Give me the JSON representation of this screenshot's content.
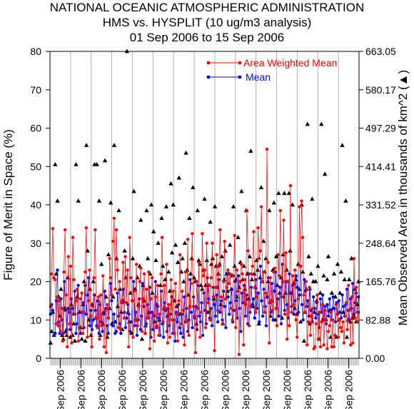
{
  "title_lines": [
    "NATIONAL OCEANIC ATMOSPHERIC ADMINISTRATION",
    "HMS vs. HYSPLIT (10 ug/m3 analysis)",
    "01 Sep 2006 to 15 Sep 2006"
  ],
  "chart_data": {
    "type": "line",
    "title": "NATIONAL OCEANIC ATMOSPHERIC ADMINISTRATION\nHMS vs. HYSPLIT (10 ug/m3 analysis)\n01 Sep 2006 to 15 Sep 2006",
    "ylabel": "Figure of Merit in Space (%)",
    "y2label": "Mean Observed Area in thousands of km^2 (▲)",
    "ylim": [
      0,
      80
    ],
    "y2lim": [
      0,
      663.05
    ],
    "y_ticks": [
      0,
      10,
      20,
      30,
      40,
      50,
      60,
      70,
      80
    ],
    "y2_ticks": [
      "0.00",
      "82.88",
      "165.76",
      "248.64",
      "331.52",
      "414.41",
      "497.29",
      "580.17",
      "663.05"
    ],
    "x_tick_labels": [
      "Sep 2006",
      "Sep 2006",
      "Sep 2006",
      "Sep 2006",
      "Sep 2006",
      "Sep 2006",
      "Sep 2006",
      "Sep 2006",
      "Sep 2006",
      "Sep 2006",
      "Sep 2006",
      "Sep 2006",
      "Sep 2006",
      "Sep 2006",
      "Sep 2006"
    ],
    "x_tick_positions_days": [
      1,
      2,
      3,
      4,
      5,
      6,
      7,
      8,
      9,
      10,
      11,
      12,
      13,
      14,
      15
    ],
    "legend_position": "top-right",
    "grid": "vertical lines at day boundaries",
    "series": [
      {
        "name": "Area Weighted Mean",
        "color": "#ff0000",
        "marker": "circle",
        "values": [
          13.5,
          22.0,
          33.8,
          21.0,
          20.5,
          9.0,
          16.0,
          8.5,
          15.0,
          7.0,
          13.0,
          4.5,
          22.5,
          33.5,
          16.5,
          3.0,
          26.5,
          9.0,
          24.0,
          4.0,
          31.5,
          20.5,
          11.5,
          15.0,
          18.0,
          4.5,
          8.0,
          15.5,
          17.0,
          6.5,
          12.0,
          22.5,
          34.0,
          5.5,
          15.0,
          23.0,
          11.0,
          3.0,
          13.5,
          21.0,
          33.5,
          10.5,
          8.0,
          16.0,
          5.0,
          16.5,
          8.5,
          21.5,
          3.0,
          12.5,
          1.5,
          14.0,
          10.5,
          26.0,
          21.0,
          16.5,
          30.5,
          36.5,
          18.0,
          33.5,
          23.0,
          8.0,
          20.0,
          7.5,
          15.0,
          25.0,
          10.5,
          26.5,
          14.5,
          23.0,
          3.0,
          31.5,
          21.0,
          15.0,
          5.5,
          17.5,
          10.0,
          24.5,
          8.5,
          13.5,
          20.0,
          23.5,
          7.0,
          15.5,
          22.0,
          6.5,
          18.0,
          10.5,
          22.5,
          2.5,
          15.5,
          21.0,
          11.5,
          4.5,
          16.0,
          8.5,
          19.0,
          6.0,
          11.5,
          22.0,
          31.5,
          9.5,
          19.0,
          13.0,
          24.5,
          4.0,
          14.0,
          5.5,
          20.5,
          10.0,
          17.5,
          6.5,
          19.5,
          11.5,
          4.5,
          15.0,
          27.0,
          9.0,
          17.5,
          12.5,
          3.5,
          22.5,
          9.5,
          31.0,
          6.0,
          13.5,
          19.5,
          32.5,
          13.5,
          11.0,
          1.5,
          20.0,
          13.0,
          25.0,
          5.5,
          12.0,
          32.5,
          21.5,
          23.0,
          8.0,
          30.0,
          14.5,
          19.0,
          10.0,
          21.0,
          30.0,
          16.0,
          2.0,
          18.5,
          27.0,
          12.5,
          24.0,
          33.5,
          16.0,
          9.0,
          20.0,
          30.5,
          15.5,
          18.5,
          23.0,
          19.5,
          22.0,
          13.0,
          10.0,
          21.5,
          32.0,
          8.0,
          23.0,
          17.5,
          1.0,
          20.0,
          24.5,
          22.0,
          3.5,
          20.5,
          14.0,
          38.5,
          28.0,
          8.5,
          13.5,
          22.0,
          24.0,
          33.0,
          18.5,
          12.0,
          16.0,
          34.0,
          26.0,
          28.0,
          39.5,
          20.0,
          22.5,
          12.0,
          17.0,
          54.5,
          25.0,
          4.0,
          21.0,
          15.0,
          12.5,
          22.5,
          23.5,
          13.0,
          8.5,
          27.0,
          21.5,
          38.5,
          16.0,
          20.0,
          36.0,
          11.5,
          27.5,
          5.0,
          20.0,
          8.5,
          45.0,
          12.0,
          21.5,
          14.0,
          23.0,
          10.0,
          5.5,
          15.5,
          39.5,
          24.0,
          41.0,
          31.5,
          16.5,
          12.0,
          20.0,
          3.5,
          9.5,
          18.5,
          6.0,
          11.0,
          13.0,
          2.5,
          3.0,
          9.0,
          16.5,
          5.0,
          12.0,
          3.0,
          9.5,
          14.0,
          3.5,
          12.5,
          10.0,
          2.5,
          7.0,
          8.5,
          12.0,
          3.0,
          10.0,
          3.0,
          6.0,
          14.0,
          11.5,
          5.5,
          10.0,
          8.0,
          7.0,
          9.5,
          4.0,
          11.0,
          14.5,
          7.5,
          19.0,
          12.5,
          3.5,
          16.0,
          4.0,
          26.0,
          10.5,
          18.5,
          9.5,
          12.0
        ]
      },
      {
        "name": "Mean",
        "color": "#0000ff",
        "marker": "circle",
        "values": [
          11.5,
          14.0,
          12.5,
          6.0,
          6.5,
          15.0,
          23.0,
          9.5,
          6.5,
          15.5,
          10.0,
          6.5,
          20.0,
          12.5,
          7.5,
          13.0,
          12.0,
          7.5,
          15.5,
          13.0,
          11.5,
          17.5,
          6.5,
          9.0,
          19.0,
          8.0,
          6.5,
          12.0,
          14.5,
          8.0,
          19.0,
          11.5,
          16.5,
          21.0,
          8.5,
          12.5,
          7.5,
          10.0,
          16.5,
          12.5,
          8.5,
          15.0,
          6.5,
          14.0,
          9.5,
          7.0,
          11.5,
          17.5,
          13.0,
          8.5,
          6.5,
          13.0,
          19.5,
          15.0,
          8.5,
          11.5,
          6.5,
          7.0,
          17.0,
          11.0,
          9.0,
          6.5,
          14.5,
          18.0,
          12.0,
          8.0,
          10.5,
          14.0,
          11.5,
          7.0,
          9.5,
          15.0,
          20.0,
          8.5,
          12.0,
          6.0,
          10.0,
          15.5,
          7.5,
          11.0,
          19.5,
          13.5,
          6.5,
          9.0,
          14.0,
          10.5,
          18.5,
          5.5,
          12.0,
          7.5,
          11.0,
          20.0,
          8.0,
          13.5,
          10.5,
          6.0,
          17.5,
          9.0,
          5.5,
          14.5,
          12.5,
          7.0,
          13.0,
          8.5,
          11.5,
          16.0,
          6.5,
          10.0,
          4.5,
          12.0,
          9.5,
          14.0,
          8.0,
          6.5,
          11.5,
          5.5,
          16.0,
          9.5,
          13.0,
          7.0,
          10.0,
          20.5,
          12.0,
          8.0,
          16.0,
          10.5,
          13.5,
          7.5,
          19.0,
          11.0,
          9.5,
          14.5,
          6.0,
          17.0,
          12.5,
          9.0,
          21.0,
          15.5,
          10.5,
          13.0,
          8.5,
          18.5,
          14.0,
          11.0,
          16.5,
          9.5,
          20.5,
          12.0,
          15.0,
          10.0,
          17.5,
          13.5,
          8.0,
          22.0,
          16.0,
          11.5,
          14.5,
          18.0,
          9.5,
          12.5,
          20.0,
          15.0,
          10.5,
          21.5,
          13.0,
          7.0,
          17.0,
          14.5,
          19.0,
          11.0,
          16.5,
          9.0,
          22.0,
          12.0,
          18.5,
          14.0,
          15.5,
          10.5,
          20.5,
          13.0,
          17.0,
          9.5,
          24.0,
          15.0,
          11.0,
          18.0,
          13.5,
          8.5,
          16.0,
          21.0,
          14.5,
          12.0,
          19.5,
          10.0,
          17.5,
          22.5,
          13.0,
          15.5,
          11.0,
          18.5,
          9.0,
          24.5,
          16.0,
          12.5,
          20.0,
          14.0,
          10.5,
          22.0,
          17.0,
          13.5,
          19.0,
          11.5,
          15.0,
          21.5,
          18.5,
          12.0,
          16.5,
          24.0,
          14.0,
          10.0,
          20.5,
          17.5,
          13.5,
          15.0,
          11.0,
          18.0,
          12.5,
          9.5,
          16.0,
          13.0,
          10.5,
          14.5,
          11.5,
          8.0,
          15.5,
          12.0,
          16.5,
          10.0,
          13.5,
          9.0,
          14.0,
          11.0,
          15.5,
          12.5,
          10.0,
          16.0,
          13.0,
          9.5,
          14.5,
          11.5,
          15.0,
          12.0,
          10.5,
          16.5,
          13.5,
          11.0,
          14.0,
          18.0,
          12.5,
          10.0,
          15.5,
          13.0,
          19.5,
          11.5,
          14.5,
          17.0,
          12.0,
          16.0
        ]
      },
      {
        "name": "Mean Observed Area",
        "axis": "right",
        "color": "#000000",
        "marker": "triangle",
        "values": [
          4.0,
          7.0,
          12.0,
          6.0,
          50.5,
          22.0,
          41.0,
          16.0,
          11.0,
          18.0,
          6.0,
          5.0,
          13.0,
          7.0,
          6.0,
          21.0,
          13.0,
          5.5,
          14.0,
          6.0,
          9.0,
          4.5,
          50.5,
          16.0,
          41.0,
          12.0,
          8.0,
          5.0,
          14.0,
          20.0,
          4.5,
          55.5,
          28.0,
          10.0,
          18.0,
          6.0,
          14.0,
          20.0,
          50.5,
          10.5,
          50.5,
          15.0,
          41.0,
          6.0,
          24.5,
          9.0,
          12.0,
          51.5,
          16.0,
          5.5,
          27.0,
          13.0,
          40.5,
          9.0,
          16.0,
          55.5,
          9.5,
          26.0,
          13.5,
          38.5,
          18.0,
          12.0,
          7.5,
          15.0,
          28.0,
          21.0,
          80.0,
          12.0,
          9.5,
          17.0,
          6.5,
          26.0,
          43.5,
          18.0,
          10.0,
          21.0,
          14.0,
          24.0,
          36.0,
          5.0,
          19.0,
          15.0,
          8.5,
          38.5,
          26.0,
          12.0,
          22.0,
          40.0,
          17.0,
          33.0,
          9.5,
          25.5,
          14.0,
          30.0,
          10.0,
          19.0,
          36.5,
          24.0,
          13.0,
          20.5,
          39.5,
          11.0,
          22.5,
          17.5,
          45.5,
          27.5,
          40.0,
          15.0,
          29.5,
          13.5,
          25.0,
          47.0,
          11.5,
          22.5,
          26.0,
          20.0,
          30.0,
          53.5,
          23.0,
          16.5,
          36.5,
          22.0,
          26.0,
          44.5,
          21.0,
          20.0,
          9.0,
          38.5,
          25.5,
          24.5,
          19.0,
          18.0,
          23.0,
          41.5,
          19.0,
          25.5,
          12.0,
          19.0,
          35.5,
          24.5,
          26.0,
          15.5,
          39.5,
          24.0,
          18.5,
          22.0,
          24.5,
          14.0,
          26.5,
          9.0,
          20.5,
          28.0,
          22.0,
          17.5,
          22.0,
          29.5,
          18.0,
          21.5,
          39.5,
          24.0,
          20.5,
          16.0,
          31.5,
          18.5,
          25.0,
          43.5,
          20.5,
          24.0,
          18.0,
          38.5,
          22.0,
          15.5,
          26.5,
          54.0,
          20.5,
          13.5,
          22.0,
          18.5,
          25.5,
          23.0,
          9.0,
          21.0,
          44.5,
          20.0,
          30.5,
          22.5,
          26.0,
          16.0,
          20.0,
          38.5,
          11.0,
          15.0,
          23.0,
          40.5,
          10.0,
          26.5,
          19.0,
          43.0,
          17.0,
          21.0,
          10.5,
          27.0,
          43.0,
          17.0,
          23.0,
          20.0,
          43.0,
          28.0,
          17.0,
          40.0,
          19.5,
          13.0,
          20.5,
          11.5,
          24.5,
          18.0,
          9.5,
          40.0,
          22.5,
          4.5,
          12.0,
          18.0,
          61.0,
          26.5,
          9.0,
          22.0,
          41.5,
          20.0,
          12.0,
          20.0,
          15.0,
          24.0,
          5.0,
          17.0,
          61.0,
          10.0,
          21.5,
          48.0,
          10.0,
          20.5,
          26.5,
          12.5,
          5.5,
          17.0,
          13.0,
          22.0,
          16.0,
          5.5,
          24.5,
          10.0,
          17.0,
          22.5,
          55.5,
          12.0,
          20.5,
          41.0,
          5.5,
          10.0,
          20.5,
          9.5,
          26.0,
          10.5,
          11.0,
          18.0,
          9.5,
          14.0,
          20.0
        ]
      }
    ]
  }
}
